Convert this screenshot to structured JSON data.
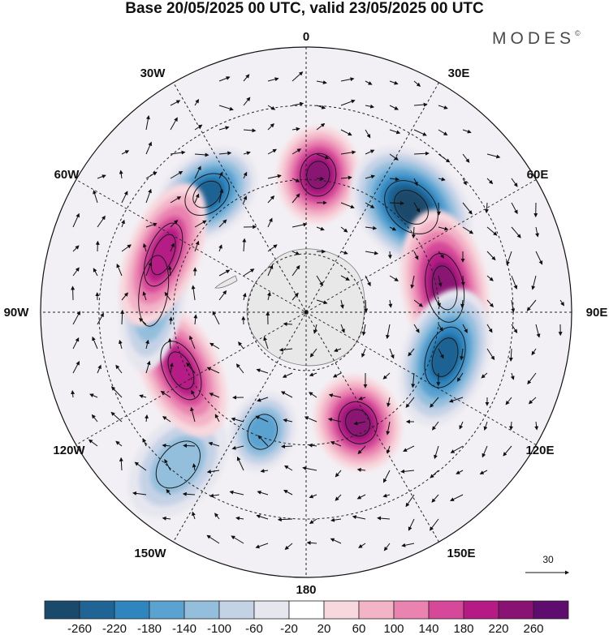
{
  "title": "Base 20/05/2025 00 UTC, valid 23/05/2025 00 UTC",
  "brand": "MODES",
  "brand_mark": "©",
  "longitude_labels": {
    "n": "0",
    "ne30": "30E",
    "ne60": "60E",
    "e": "90E",
    "se120": "120E",
    "se150": "150E",
    "s": "180",
    "sw150": "150W",
    "sw120": "120W",
    "w": "90W",
    "nw60": "60W",
    "nw30": "30W"
  },
  "vector_scale_label": "30",
  "colorbar": {
    "ticks": [
      "-260",
      "-220",
      "-180",
      "-140",
      "-100",
      "-60",
      "-20",
      "20",
      "60",
      "100",
      "140",
      "180",
      "220",
      "260"
    ],
    "colors": [
      "#1a4a6b",
      "#1f6494",
      "#2f86bf",
      "#5aa3d1",
      "#93bfdd",
      "#c4d2e6",
      "#e6e6ef",
      "#ffffff",
      "#f8d8de",
      "#f3b4c8",
      "#ea83b0",
      "#d6489a",
      "#b61a85",
      "#8a1273",
      "#5e0d6e"
    ]
  },
  "map": {
    "projection": "south-polar-stereographic",
    "field_anomalies": [
      {
        "lon": -40,
        "value": -230
      },
      {
        "lon": 5,
        "value": 250
      },
      {
        "lon": 45,
        "value": -270
      },
      {
        "lon": 80,
        "value": 250
      },
      {
        "lon": 108,
        "value": -250
      },
      {
        "lon": 155,
        "value": 235
      },
      {
        "lon": -160,
        "value": -170
      },
      {
        "lon": -140,
        "value": -120
      },
      {
        "lon": -115,
        "value": 200
      },
      {
        "lon": -82,
        "value": -150
      },
      {
        "lon": -68,
        "value": 210
      }
    ]
  }
}
